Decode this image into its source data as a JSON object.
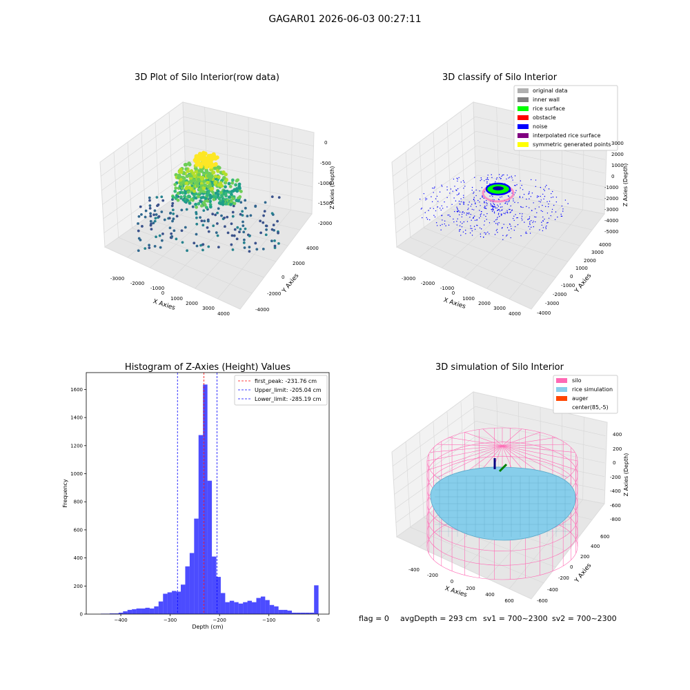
{
  "figure": {
    "suptitle": "GAGAR01 2026-06-03 00:27:11",
    "status_line": {
      "flag": "flag = 0",
      "avg_depth": "avgDepth = 293 cm",
      "sv1": "sv1 = 700~2300",
      "sv2": "sv2 = 700~2300"
    }
  },
  "panels": {
    "raw": {
      "title": "3D Plot of Silo Interior(row data)",
      "xlabel": "X Axies",
      "ylabel": "Y Axies",
      "zlabel": "Z Axies (Depth)",
      "xticks": [
        "-3000",
        "-2000",
        "-1000",
        "0",
        "1000",
        "2000",
        "3000",
        "4000"
      ],
      "yticks": [
        "-4000",
        "-2000",
        "0",
        "2000",
        "4000"
      ],
      "zticks": [
        "0",
        "-500",
        "-1000",
        "-1500",
        "-2000"
      ]
    },
    "classify": {
      "title": "3D classify of Silo Interior",
      "xlabel": "X Axies",
      "ylabel": "Y Axies",
      "zlabel": "Z Axies (Depth)",
      "xticks": [
        "-3000",
        "-2000",
        "-1000",
        "0",
        "1000",
        "2000",
        "3000",
        "4000"
      ],
      "yticks": [
        "-4000",
        "-3000",
        "-2000",
        "-1000",
        "0",
        "1000",
        "2000",
        "3000",
        "4000"
      ],
      "zticks": [
        "3000",
        "2000",
        "1000",
        "0",
        "-1000",
        "-2000",
        "-3000",
        "-4000",
        "-5000"
      ],
      "legend": [
        {
          "label": "original data",
          "color": "#b0b0b0"
        },
        {
          "label": "inner wall",
          "color": "#808080"
        },
        {
          "label": "rice surface",
          "color": "#00ff00"
        },
        {
          "label": "obstacle",
          "color": "#ff0000"
        },
        {
          "label": "noise",
          "color": "#0000ff"
        },
        {
          "label": "interpolated rice surface",
          "color": "#800080"
        },
        {
          "label": "symmetric generated points",
          "color": "#ffff00"
        }
      ]
    },
    "simulation": {
      "title": "3D simulation of Silo Interior",
      "xlabel": "X Axies",
      "ylabel": "Y Axies",
      "zlabel": "Z Axies (Depth)",
      "xticks": [
        "-400",
        "-200",
        "0",
        "200",
        "400",
        "600"
      ],
      "yticks": [
        "-600",
        "-400",
        "-200",
        "0",
        "200",
        "400",
        "600"
      ],
      "zticks": [
        "400",
        "200",
        "0",
        "-200",
        "-400",
        "-600",
        "-800"
      ],
      "legend": [
        {
          "label": "silo",
          "color": "#ff69b4"
        },
        {
          "label": "rice simulation",
          "color": "#87ceeb"
        },
        {
          "label": "auger",
          "color": "#ff4500"
        },
        {
          "label": "center(85,-5)",
          "color": "#ffffff"
        }
      ]
    }
  },
  "chart_data": {
    "type": "bar",
    "title": "Histogram of Z-Axies (Height) Values",
    "xlabel": "Depth (cm)",
    "ylabel": "Frequency",
    "xlim": [
      -470,
      22
    ],
    "ylim": [
      0,
      1720
    ],
    "xticks": [
      -400,
      -300,
      -200,
      -100,
      0
    ],
    "yticks": [
      0,
      200,
      400,
      600,
      800,
      1000,
      1200,
      1400,
      1600
    ],
    "bar_color": "#0000ff",
    "bin_width": 9,
    "bins": [
      {
        "x": -436,
        "count": 3
      },
      {
        "x": -427,
        "count": 3
      },
      {
        "x": -418,
        "count": 5
      },
      {
        "x": -409,
        "count": 5
      },
      {
        "x": -400,
        "count": 10
      },
      {
        "x": -391,
        "count": 20
      },
      {
        "x": -382,
        "count": 30
      },
      {
        "x": -373,
        "count": 35
      },
      {
        "x": -364,
        "count": 40
      },
      {
        "x": -355,
        "count": 40
      },
      {
        "x": -346,
        "count": 45
      },
      {
        "x": -337,
        "count": 40
      },
      {
        "x": -328,
        "count": 55
      },
      {
        "x": -319,
        "count": 90
      },
      {
        "x": -310,
        "count": 145
      },
      {
        "x": -301,
        "count": 155
      },
      {
        "x": -292,
        "count": 165
      },
      {
        "x": -283,
        "count": 160
      },
      {
        "x": -274,
        "count": 210
      },
      {
        "x": -265,
        "count": 340
      },
      {
        "x": -256,
        "count": 435
      },
      {
        "x": -247,
        "count": 680
      },
      {
        "x": -238,
        "count": 1275
      },
      {
        "x": -229,
        "count": 1635
      },
      {
        "x": -220,
        "count": 950
      },
      {
        "x": -211,
        "count": 410
      },
      {
        "x": -202,
        "count": 265
      },
      {
        "x": -193,
        "count": 150
      },
      {
        "x": -184,
        "count": 85
      },
      {
        "x": -175,
        "count": 95
      },
      {
        "x": -166,
        "count": 85
      },
      {
        "x": -157,
        "count": 75
      },
      {
        "x": -148,
        "count": 85
      },
      {
        "x": -139,
        "count": 95
      },
      {
        "x": -130,
        "count": 85
      },
      {
        "x": -121,
        "count": 115
      },
      {
        "x": -112,
        "count": 125
      },
      {
        "x": -103,
        "count": 100
      },
      {
        "x": -94,
        "count": 65
      },
      {
        "x": -85,
        "count": 55
      },
      {
        "x": -76,
        "count": 30
      },
      {
        "x": -67,
        "count": 30
      },
      {
        "x": -58,
        "count": 25
      },
      {
        "x": -49,
        "count": 10
      },
      {
        "x": -40,
        "count": 10
      },
      {
        "x": -31,
        "count": 10
      },
      {
        "x": -22,
        "count": 10
      },
      {
        "x": -13,
        "count": 10
      },
      {
        "x": -4,
        "count": 205
      }
    ],
    "vlines": [
      {
        "label": "first_peak: -231.76 cm",
        "x": -231.76,
        "color": "#ff0000"
      },
      {
        "label": "Upper_limit: -205.04 cm",
        "x": -205.04,
        "color": "#0000ff"
      },
      {
        "label": "Lower_limit: -285.19 cm",
        "x": -285.19,
        "color": "#0000ff"
      }
    ]
  }
}
